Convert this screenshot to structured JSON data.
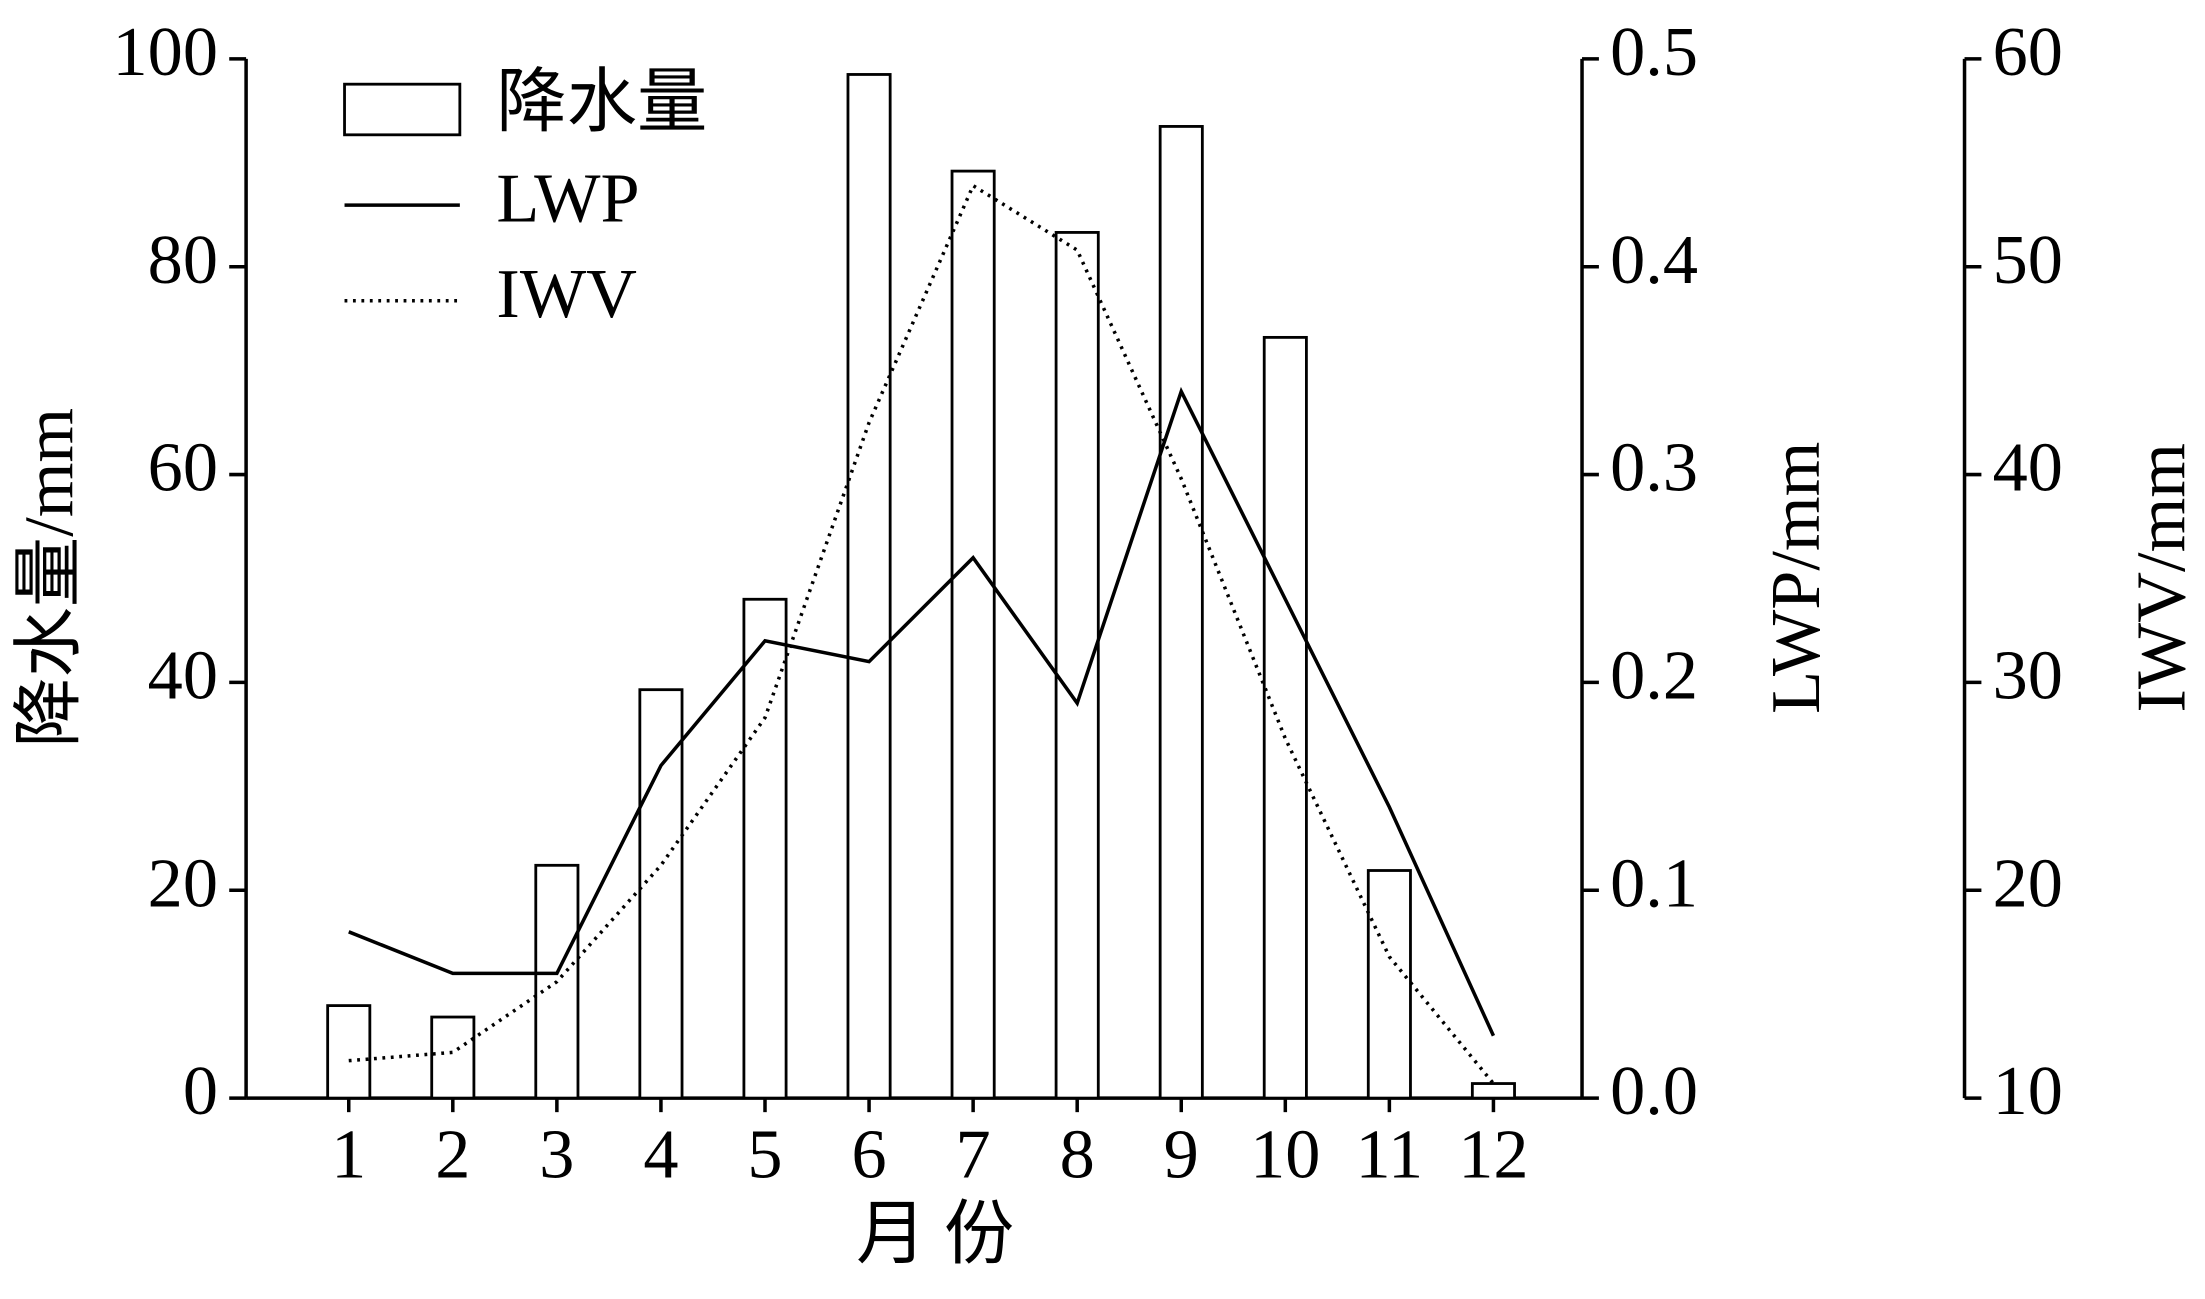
{
  "chart_data": {
    "type": "bar",
    "categories": [
      "1",
      "2",
      "3",
      "4",
      "5",
      "6",
      "7",
      "8",
      "9",
      "10",
      "11",
      "12"
    ],
    "xlabel": "月 份",
    "ylabel": "降水量/mm",
    "y2label": "LWP/mm",
    "y3label": "IWV/mm",
    "ylim": [
      0,
      100
    ],
    "yticks": [
      0,
      20,
      40,
      60,
      80,
      100
    ],
    "y2lim": [
      0,
      0.5
    ],
    "y2ticks": [
      {
        "value": 0,
        "label": "0.0"
      },
      0.1,
      0.2,
      0.3,
      0.4,
      0.5
    ],
    "y3lim": [
      10,
      60
    ],
    "y3ticks": [
      10,
      20,
      30,
      40,
      50,
      60
    ],
    "legend": "upper left",
    "series": [
      {
        "name": "降水量",
        "type": "bar",
        "color": "#ffffff",
        "edgecolor": "#000000",
        "values": [
          8.9,
          7.8,
          22.4,
          39.3,
          48,
          98.5,
          89.2,
          83.3,
          93.5,
          73.2,
          21.9,
          1.4
        ]
      },
      {
        "name": "LWP",
        "type": "line",
        "axis": "y2",
        "color": "#000000",
        "line_style": "solid",
        "values": [
          0.08,
          0.06,
          0.06,
          0.16,
          0.22,
          0.21,
          0.26,
          0.19,
          0.34,
          0.24,
          0.14,
          0.03
        ]
      },
      {
        "name": "IWV",
        "type": "line",
        "axis": "y3",
        "color": "#000000",
        "line_style": "dotted",
        "values": [
          11.8,
          12.2,
          15.6,
          21.2,
          28.3,
          42.5,
          53.9,
          50.8,
          39.8,
          27.3,
          16.8,
          10.7
        ]
      }
    ]
  }
}
